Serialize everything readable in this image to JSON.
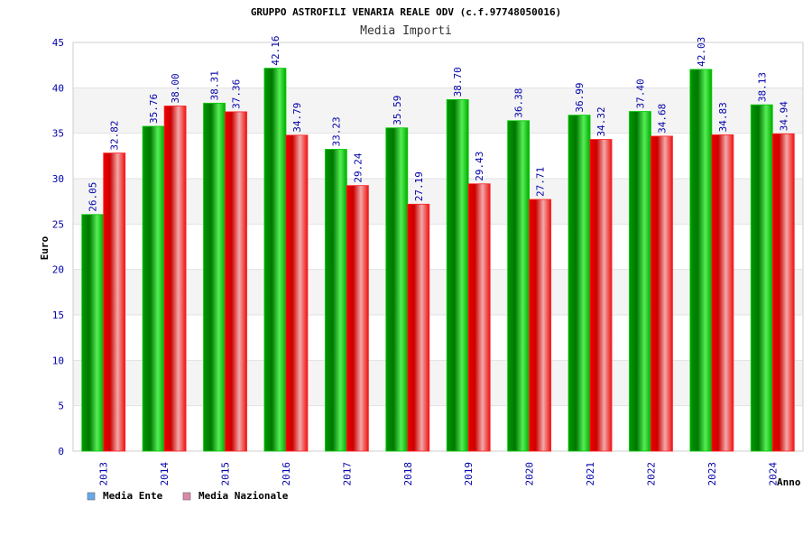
{
  "chart_data": {
    "type": "bar",
    "title": "GRUPPO ASTROFILI VENARIA REALE ODV (c.f.97748050016)",
    "subtitle": "Media Importi",
    "xlabel": "Anno",
    "ylabel": "Euro",
    "ylim": [
      0,
      45
    ],
    "yticks": [
      0,
      5,
      10,
      15,
      20,
      25,
      30,
      35,
      40,
      45
    ],
    "grid": true,
    "legend_position": "bottom-left",
    "categories": [
      "2013",
      "2014",
      "2015",
      "2016",
      "2017",
      "2018",
      "2019",
      "2020",
      "2021",
      "2022",
      "2023",
      "2024"
    ],
    "series": [
      {
        "name": "Media Ente",
        "color": "#00bb00",
        "legend_color": "#66aaee",
        "values": [
          26.05,
          35.76,
          38.31,
          42.16,
          33.23,
          35.59,
          38.7,
          36.38,
          36.99,
          37.4,
          42.03,
          38.13
        ],
        "labels": [
          "26.05",
          "35.76",
          "38.31",
          "42.16",
          "33.23",
          "35.59",
          "38.70",
          "36.38",
          "36.99",
          "37.40",
          "42.03",
          "38.13"
        ]
      },
      {
        "name": "Media Nazionale",
        "color": "#ee1111",
        "legend_color": "#dd88aa",
        "values": [
          32.82,
          38.0,
          37.36,
          34.79,
          29.24,
          27.19,
          29.43,
          27.71,
          34.32,
          34.68,
          34.83,
          34.94
        ],
        "labels": [
          "32.82",
          "38.00",
          "37.36",
          "34.79",
          "29.24",
          "27.19",
          "29.43",
          "27.71",
          "34.32",
          "34.68",
          "34.83",
          "34.94"
        ]
      }
    ]
  }
}
